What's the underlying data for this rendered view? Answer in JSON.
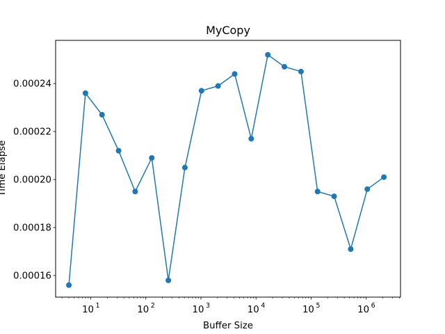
{
  "chart_data": {
    "type": "line",
    "title": "MyCopy",
    "xlabel": "Buffer Size",
    "ylabel": "Time Elapse",
    "xscale": "log",
    "xlim": [
      2.3,
      4200000
    ],
    "ylim": [
      0.000151,
      0.000258
    ],
    "grid": false,
    "line_color": "#1f77b4",
    "marker": "circle",
    "x_ticks": [
      {
        "value": 10,
        "label": "10",
        "exp": "1"
      },
      {
        "value": 100,
        "label": "10",
        "exp": "2"
      },
      {
        "value": 1000,
        "label": "10",
        "exp": "3"
      },
      {
        "value": 10000,
        "label": "10",
        "exp": "4"
      },
      {
        "value": 100000,
        "label": "10",
        "exp": "5"
      },
      {
        "value": 1000000,
        "label": "10",
        "exp": "6"
      }
    ],
    "y_ticks": [
      {
        "value": 0.00016,
        "label": "0.00016"
      },
      {
        "value": 0.00018,
        "label": "0.00018"
      },
      {
        "value": 0.0002,
        "label": "0.00020"
      },
      {
        "value": 0.00022,
        "label": "0.00022"
      },
      {
        "value": 0.00024,
        "label": "0.00024"
      }
    ],
    "series": [
      {
        "x": [
          4,
          8,
          16,
          32,
          64,
          128,
          256,
          512,
          1024,
          2048,
          4096,
          8192,
          16384,
          32768,
          65536,
          131072,
          262144,
          524288,
          1048576,
          2097152
        ],
        "y": [
          0.000156,
          0.000236,
          0.000227,
          0.000212,
          0.000195,
          0.000209,
          0.000158,
          0.000205,
          0.000237,
          0.000239,
          0.000244,
          0.000217,
          0.000252,
          0.000247,
          0.000245,
          0.000195,
          0.000193,
          0.000171,
          0.000196,
          0.000201
        ]
      }
    ]
  }
}
